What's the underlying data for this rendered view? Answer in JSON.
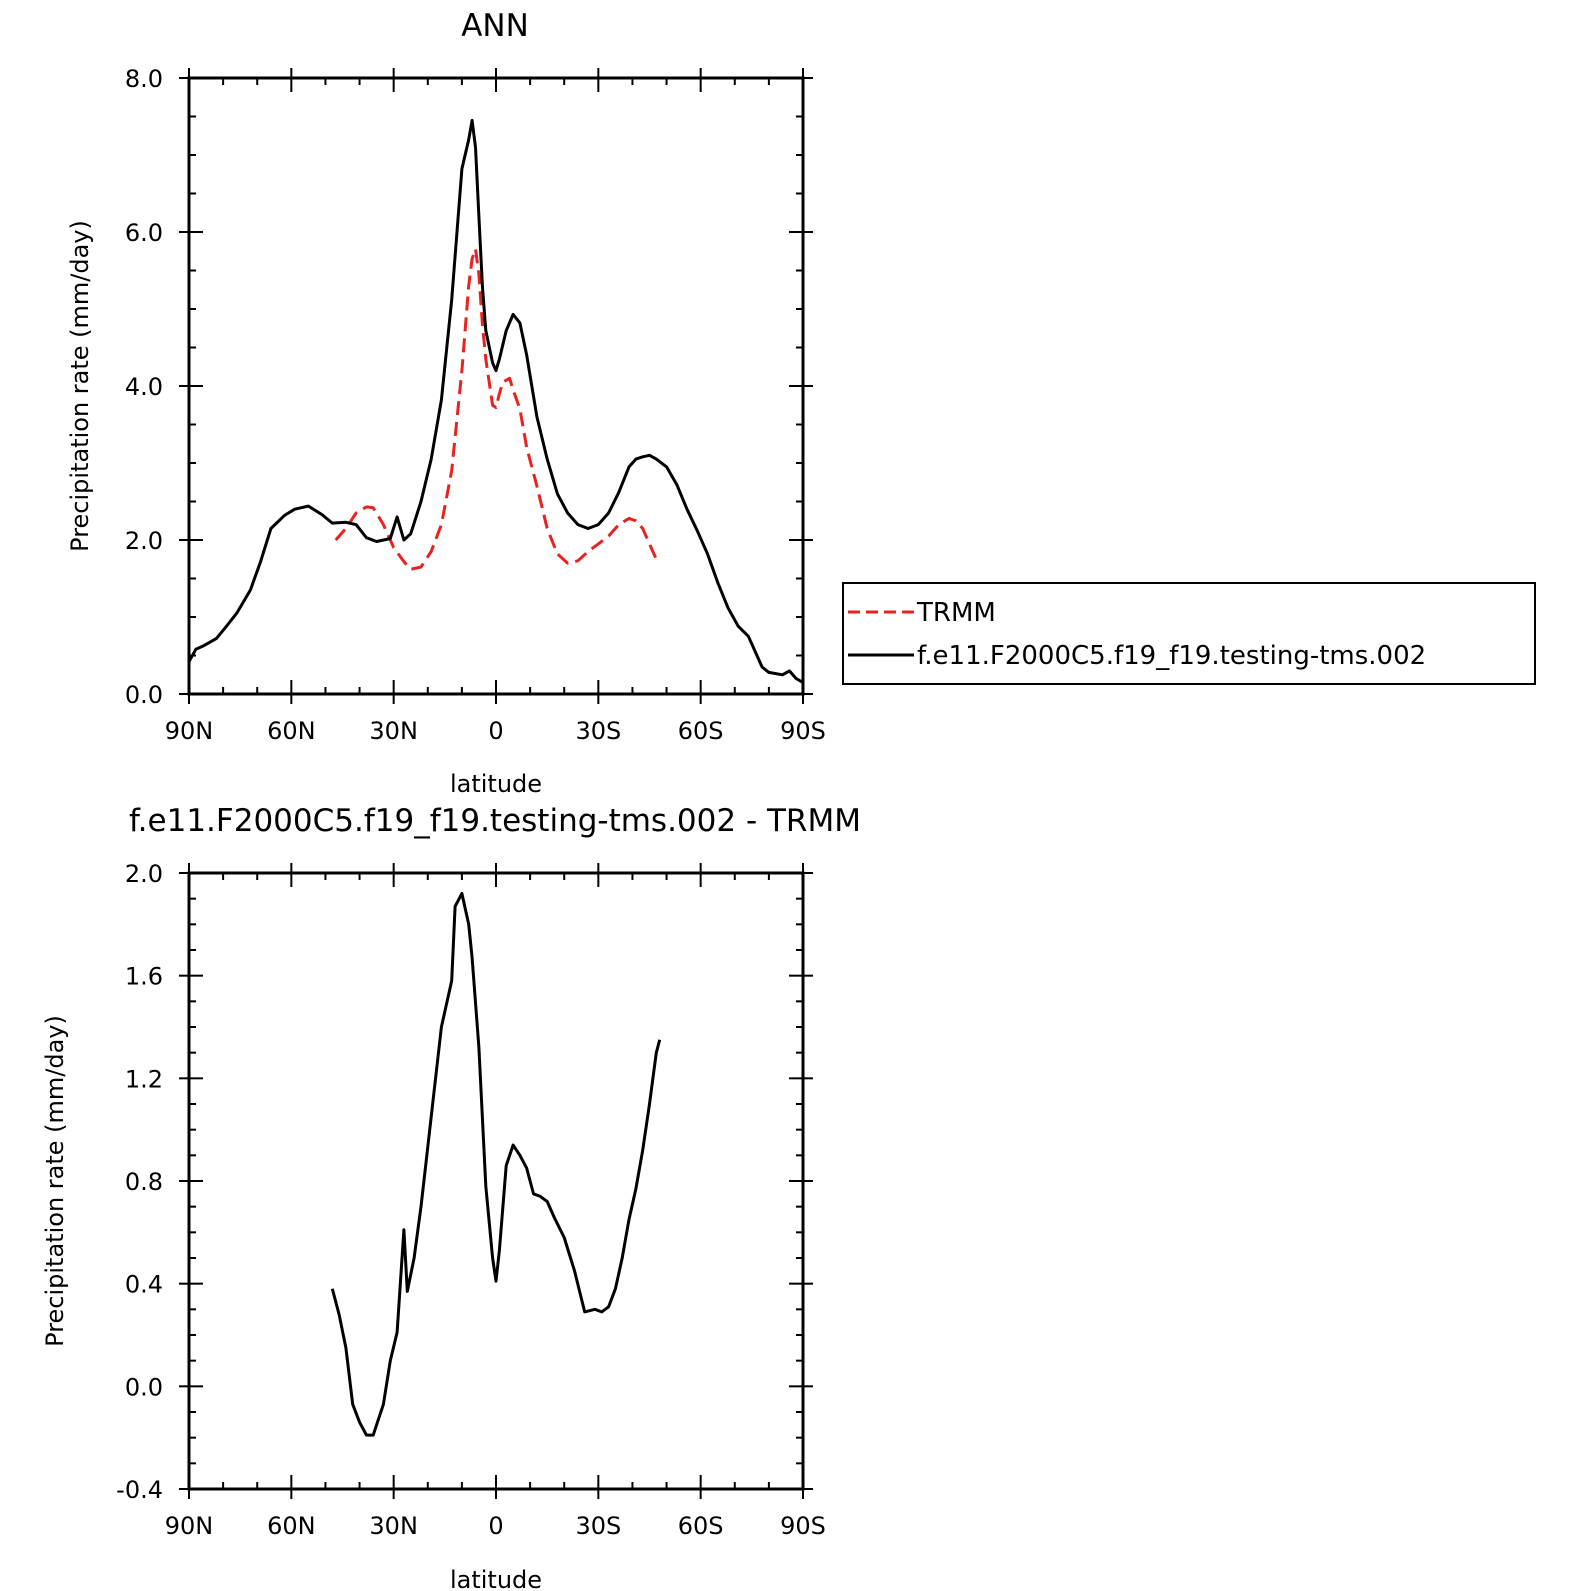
{
  "chart_data": [
    {
      "type": "line",
      "title": "ANN",
      "xlabel": "latitude",
      "ylabel": "Precipitation rate (mm/day)",
      "xlim": [
        90,
        -90
      ],
      "ylim": [
        0,
        8
      ],
      "xticks": [
        90,
        60,
        30,
        0,
        -30,
        -60,
        -90
      ],
      "xtick_labels": [
        "90N",
        "60N",
        "30N",
        "0",
        "30S",
        "60S",
        "90S"
      ],
      "yticks": [
        0,
        2,
        4,
        6,
        8
      ],
      "ytick_labels": [
        "0.0",
        "2.0",
        "4.0",
        "6.0",
        "8.0"
      ],
      "grid": false,
      "legend_position": "right",
      "series": [
        {
          "name": "TRMM",
          "color": "#e8231f",
          "style": "dashed",
          "x": [
            47,
            44,
            41,
            38,
            36,
            33,
            30,
            27,
            25,
            22,
            19,
            16,
            13,
            10,
            8,
            7,
            6,
            5,
            4,
            3,
            1,
            0,
            -1,
            -2,
            -4,
            -5,
            -7,
            -9,
            -12,
            -15,
            -18,
            -21,
            -24,
            -27,
            -30,
            -33,
            -36,
            -39,
            -41,
            -43,
            -45,
            -47
          ],
          "y": [
            2.0,
            2.15,
            2.35,
            2.43,
            2.42,
            2.2,
            1.9,
            1.72,
            1.62,
            1.65,
            1.85,
            2.2,
            2.9,
            4.2,
            5.3,
            5.65,
            5.78,
            5.45,
            4.8,
            4.35,
            3.75,
            3.72,
            3.9,
            4.05,
            4.1,
            3.95,
            3.7,
            3.2,
            2.7,
            2.15,
            1.82,
            1.7,
            1.73,
            1.85,
            1.95,
            2.05,
            2.2,
            2.28,
            2.25,
            2.15,
            1.95,
            1.75
          ]
        },
        {
          "name": "f.e11.F2000C5.f19_f19.testing-tms.002",
          "color": "#000000",
          "style": "solid",
          "x": [
            90,
            88,
            86,
            82,
            79,
            76,
            72,
            69,
            66,
            62,
            59,
            55,
            51,
            48,
            44,
            41,
            38,
            35,
            31,
            29,
            27,
            25,
            22,
            19,
            16,
            13,
            10,
            8,
            7,
            6,
            5,
            4,
            3,
            1,
            0,
            -1,
            -3,
            -5,
            -7,
            -9,
            -12,
            -15,
            -18,
            -21,
            -24,
            -27,
            -30,
            -33,
            -36,
            -39,
            -41,
            -43,
            -45,
            -47,
            -50,
            -53,
            -56,
            -59,
            -62,
            -65,
            -68,
            -71,
            -74,
            -76,
            -78,
            -80,
            -84,
            -86,
            -88,
            -90
          ],
          "y": [
            0.42,
            0.58,
            0.62,
            0.72,
            0.88,
            1.05,
            1.35,
            1.72,
            2.15,
            2.32,
            2.4,
            2.44,
            2.33,
            2.22,
            2.23,
            2.2,
            2.03,
            1.98,
            2.02,
            2.3,
            2.0,
            2.08,
            2.5,
            3.05,
            3.82,
            5.12,
            6.82,
            7.2,
            7.45,
            7.1,
            6.2,
            5.3,
            4.72,
            4.3,
            4.2,
            4.35,
            4.72,
            4.93,
            4.82,
            4.4,
            3.6,
            3.05,
            2.6,
            2.35,
            2.2,
            2.15,
            2.2,
            2.35,
            2.62,
            2.95,
            3.05,
            3.08,
            3.1,
            3.05,
            2.95,
            2.72,
            2.4,
            2.12,
            1.82,
            1.45,
            1.12,
            0.88,
            0.75,
            0.55,
            0.35,
            0.28,
            0.25,
            0.3,
            0.2,
            0.15
          ]
        }
      ]
    },
    {
      "type": "line",
      "title": "f.e11.F2000C5.f19_f19.testing-tms.002 - TRMM",
      "xlabel": "latitude",
      "ylabel": "Precipitation rate (mm/day)",
      "xlim": [
        90,
        -90
      ],
      "ylim": [
        -0.4,
        2.0
      ],
      "xticks": [
        90,
        60,
        30,
        0,
        -30,
        -60,
        -90
      ],
      "xtick_labels": [
        "90N",
        "60N",
        "30N",
        "0",
        "30S",
        "60S",
        "90S"
      ],
      "yticks": [
        -0.4,
        0.0,
        0.4,
        0.8,
        1.2,
        1.6,
        2.0
      ],
      "ytick_labels": [
        "-0.4",
        "0.0",
        "0.4",
        "0.8",
        "1.2",
        "1.6",
        "2.0"
      ],
      "grid": false,
      "series": [
        {
          "color": "#000000",
          "style": "solid",
          "x": [
            48,
            46,
            44,
            42,
            40,
            38,
            36,
            33,
            31,
            29,
            27,
            26,
            24,
            22,
            19,
            16,
            13,
            12,
            10,
            8,
            7,
            5,
            3,
            1,
            0,
            -1,
            -3,
            -5,
            -7,
            -9,
            -11,
            -13,
            -15,
            -17,
            -20,
            -23,
            -26,
            -29,
            -31,
            -33,
            -35,
            -37,
            -39,
            -41,
            -43,
            -45,
            -47,
            -48
          ],
          "y": [
            0.38,
            0.28,
            0.15,
            -0.07,
            -0.14,
            -0.19,
            -0.19,
            -0.07,
            0.1,
            0.21,
            0.61,
            0.37,
            0.5,
            0.7,
            1.05,
            1.4,
            1.58,
            1.87,
            1.92,
            1.8,
            1.67,
            1.32,
            0.78,
            0.5,
            0.41,
            0.53,
            0.86,
            0.94,
            0.9,
            0.85,
            0.75,
            0.74,
            0.72,
            0.66,
            0.58,
            0.45,
            0.29,
            0.3,
            0.29,
            0.31,
            0.38,
            0.5,
            0.65,
            0.77,
            0.92,
            1.1,
            1.3,
            1.35
          ]
        }
      ]
    }
  ]
}
